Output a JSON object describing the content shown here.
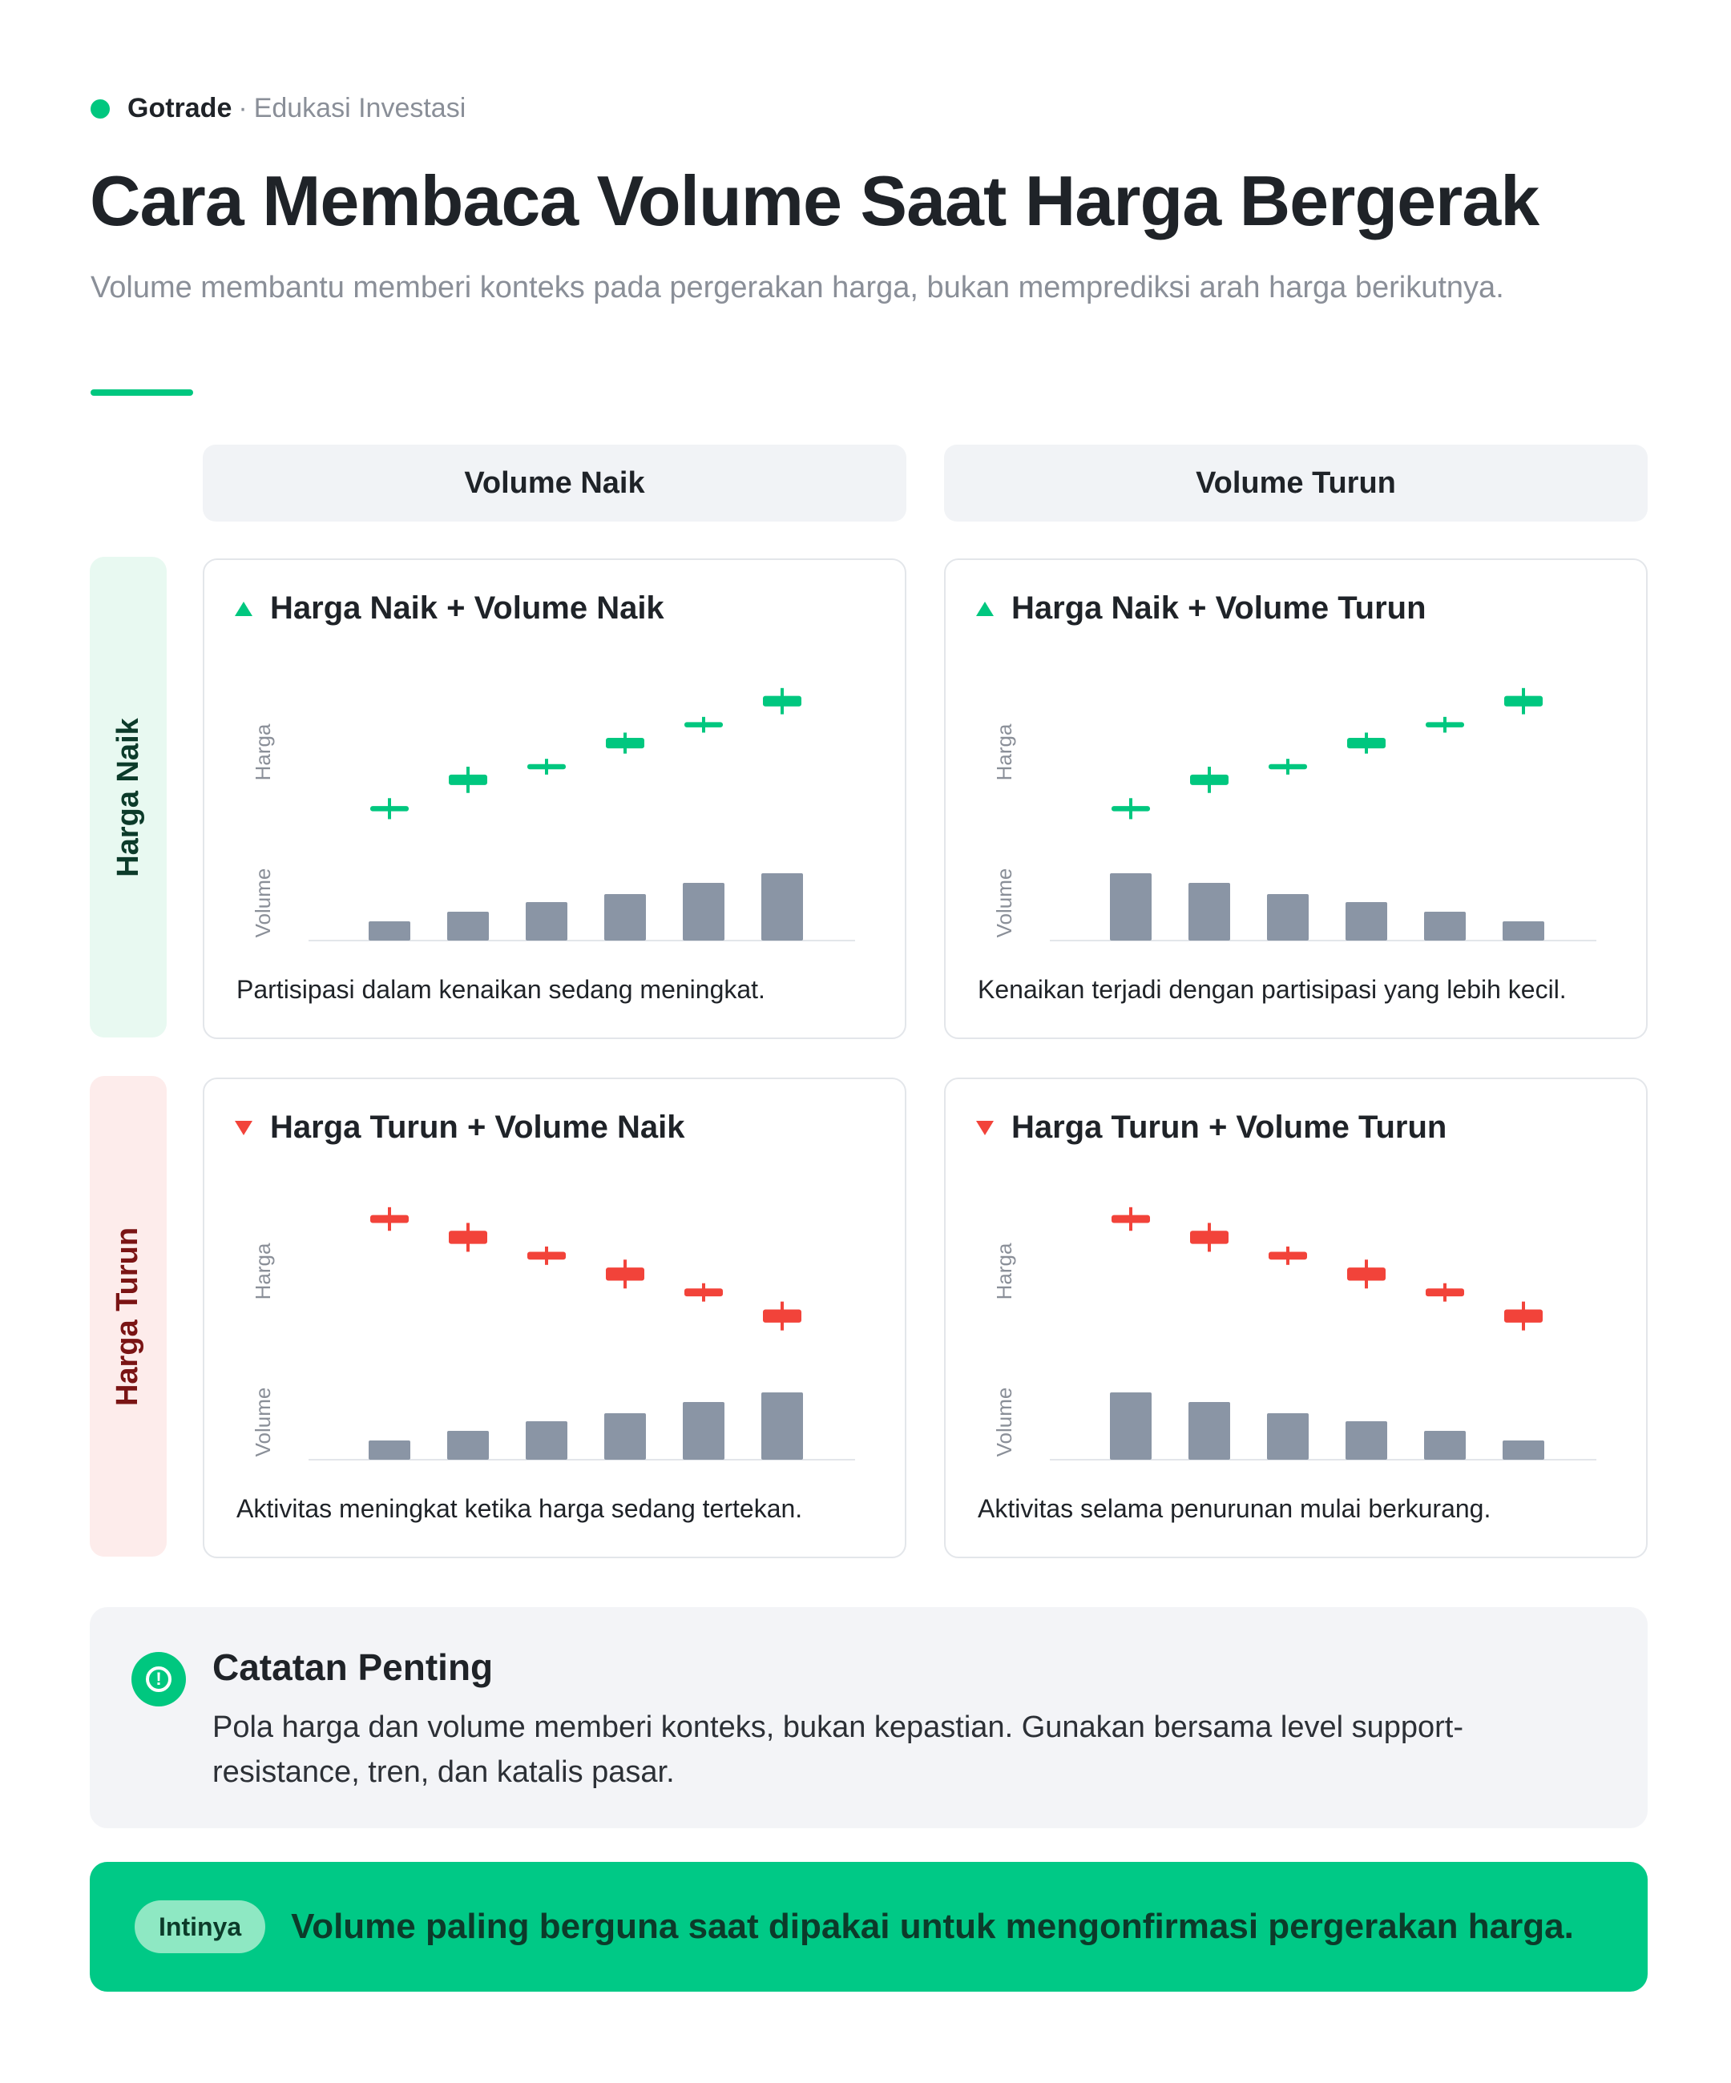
{
  "brand": {
    "name": "Gotrade",
    "separator": "·",
    "subtitle": "Edukasi Investasi"
  },
  "title": "Cara Membaca Volume Saat Harga Bergerak",
  "subtitle": "Volume membantu memberi konteks pada pergerakan harga, bukan memprediksi arah harga berikutnya.",
  "columns": [
    "Volume Naik",
    "Volume Turun"
  ],
  "rows": [
    "Harga Naik",
    "Harga Turun"
  ],
  "colors": {
    "up": "#00c77f",
    "down": "#f2433a",
    "volume": "#8a95a5",
    "accent": "#00c77f"
  },
  "axis_labels": {
    "price": "Harga",
    "volume": "Volume"
  },
  "chart_data": [
    {
      "type": "candlestick",
      "title": "Harga Naik + Volume Naik",
      "direction": "up",
      "caption": "Partisipasi dalam kenaikan sedang meningkat.",
      "series": [
        {
          "name": "Harga",
          "ohlc": [
            [
              20,
              22,
              17,
              25
            ],
            [
              30,
              34,
              27,
              37
            ],
            [
              36,
              38,
              34,
              40
            ],
            [
              44,
              48,
              42,
              50
            ],
            [
              52,
              54,
              50,
              56
            ],
            [
              60,
              64,
              57,
              67
            ]
          ]
        },
        {
          "name": "Volume",
          "values": [
            12,
            18,
            24,
            29,
            36,
            42
          ]
        }
      ]
    },
    {
      "type": "candlestick",
      "title": "Harga Naik + Volume Turun",
      "direction": "up",
      "caption": "Kenaikan terjadi dengan partisipasi yang lebih kecil.",
      "series": [
        {
          "name": "Harga",
          "ohlc": [
            [
              20,
              22,
              17,
              25
            ],
            [
              30,
              34,
              27,
              37
            ],
            [
              36,
              38,
              34,
              40
            ],
            [
              44,
              48,
              42,
              50
            ],
            [
              52,
              54,
              50,
              56
            ],
            [
              60,
              64,
              57,
              67
            ]
          ]
        },
        {
          "name": "Volume",
          "values": [
            42,
            36,
            29,
            24,
            18,
            12
          ]
        }
      ]
    },
    {
      "type": "candlestick",
      "title": "Harga Turun + Volume Naik",
      "direction": "down",
      "caption": "Aktivitas meningkat ketika harga sedang tertekan.",
      "series": [
        {
          "name": "Harga",
          "ohlc": [
            [
              64,
              61,
              58,
              67
            ],
            [
              58,
              53,
              50,
              61
            ],
            [
              50,
              47,
              45,
              52
            ],
            [
              44,
              39,
              36,
              47
            ],
            [
              36,
              33,
              31,
              38
            ],
            [
              28,
              23,
              20,
              31
            ]
          ]
        },
        {
          "name": "Volume",
          "values": [
            12,
            18,
            24,
            29,
            36,
            42
          ]
        }
      ]
    },
    {
      "type": "candlestick",
      "title": "Harga Turun + Volume Turun",
      "direction": "down",
      "caption": "Aktivitas selama penurunan mulai berkurang.",
      "series": [
        {
          "name": "Harga",
          "ohlc": [
            [
              64,
              61,
              58,
              67
            ],
            [
              58,
              53,
              50,
              61
            ],
            [
              50,
              47,
              45,
              52
            ],
            [
              44,
              39,
              36,
              47
            ],
            [
              36,
              33,
              31,
              38
            ],
            [
              28,
              23,
              20,
              31
            ]
          ]
        },
        {
          "name": "Volume",
          "values": [
            42,
            36,
            29,
            24,
            18,
            12
          ]
        }
      ]
    }
  ],
  "note": {
    "title": "Catatan Penting",
    "body": "Pola harga dan volume memberi konteks, bukan kepastian. Gunakan bersama level support-resistance, tren, dan katalis pasar."
  },
  "takeaway": {
    "pill": "Intinya",
    "text": "Volume paling berguna saat dipakai untuk mengonfirmasi pergerakan harga."
  }
}
